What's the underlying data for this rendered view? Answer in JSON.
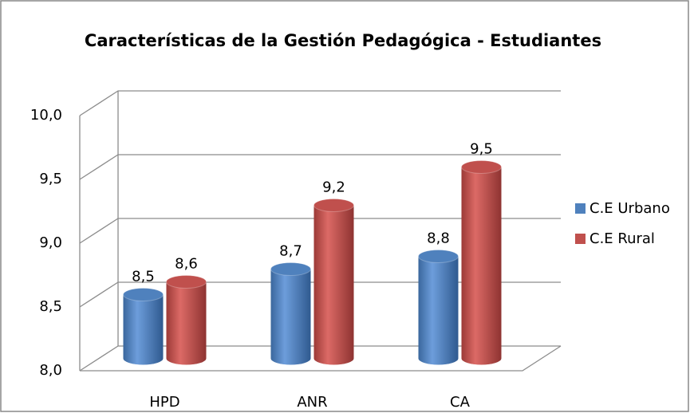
{
  "chart_data": {
    "type": "bar3d",
    "title": "Características de la Gestión Pedagógica - Estudiantes",
    "categories": [
      "HPD",
      "ANR",
      "CA"
    ],
    "series": [
      {
        "name": "C.E Urbano",
        "color": "#4f81bd",
        "values": [
          8.5,
          8.7,
          8.8
        ],
        "value_labels": [
          "8,5",
          "8,7",
          "8,8"
        ]
      },
      {
        "name": "C.E Rural",
        "color": "#c0504d",
        "values": [
          8.6,
          9.2,
          9.5
        ],
        "value_labels": [
          "8,6",
          "9,2",
          "9,5"
        ]
      }
    ],
    "ylim": [
      8.0,
      10.0
    ],
    "yticks": [
      {
        "value": 8.0,
        "label": "8,0"
      },
      {
        "value": 8.5,
        "label": "8,5"
      },
      {
        "value": 9.0,
        "label": "9,0"
      },
      {
        "value": 9.5,
        "label": "9,5"
      },
      {
        "value": 10.0,
        "label": "10,0"
      }
    ],
    "grid": true,
    "legend": "right"
  }
}
